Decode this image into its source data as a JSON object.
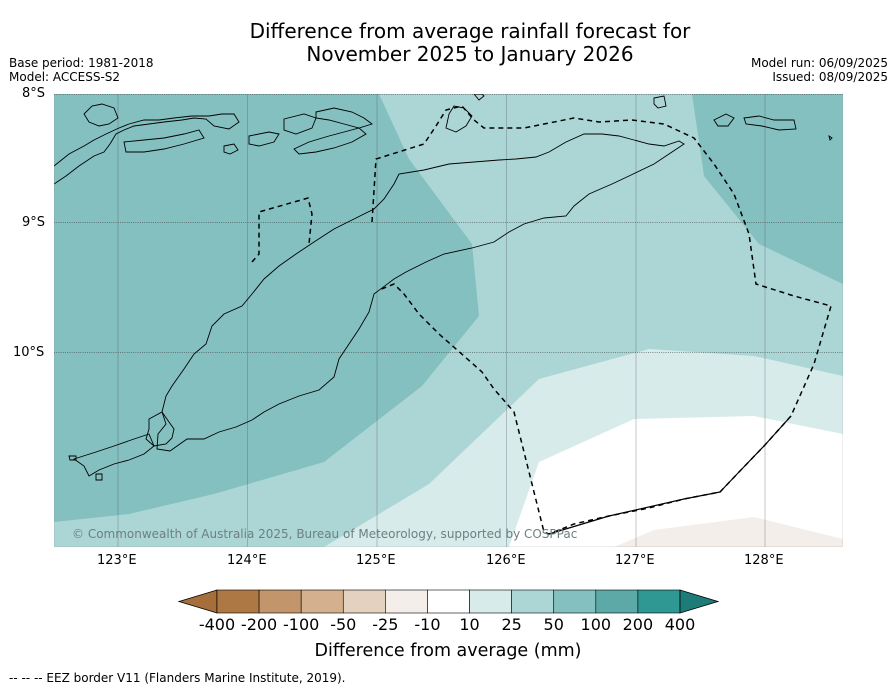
{
  "title_line1": "Difference from average rainfall forecast for",
  "title_line2": "November 2025 to January 2026",
  "meta_left": {
    "base_period": "Base period: 1981-2018",
    "model": "Model: ACCESS-S2"
  },
  "meta_right": {
    "model_run": "Model run: 06/09/2025",
    "issued": "Issued: 08/09/2025"
  },
  "map": {
    "lat_labels": [
      "8°S",
      "9°S",
      "10°S"
    ],
    "lon_labels": [
      "123°E",
      "124°E",
      "125°E",
      "126°E",
      "127°E",
      "128°E"
    ],
    "copyright": "© Commonwealth of Australia 2025, Bureau of Meteorology, supported by COSPPac"
  },
  "colorbar": {
    "title": "Difference from average (mm)",
    "labels": [
      "-400",
      "-200",
      "-100",
      "-50",
      "-25",
      "-10",
      "10",
      "25",
      "50",
      "100",
      "200",
      "400"
    ],
    "colors": [
      "#a56e3a",
      "#ad7843",
      "#c3956b",
      "#d4b08f",
      "#e5d1bf",
      "#f3eee9",
      "#ffffff",
      "#d6ebea",
      "#acd6d5",
      "#84c0bf",
      "#5ca9a7",
      "#2f9892",
      "#1d7c77"
    ]
  },
  "footer": "--  --  -- EEZ border V11 (Flanders Marine Institute, 2019)."
}
